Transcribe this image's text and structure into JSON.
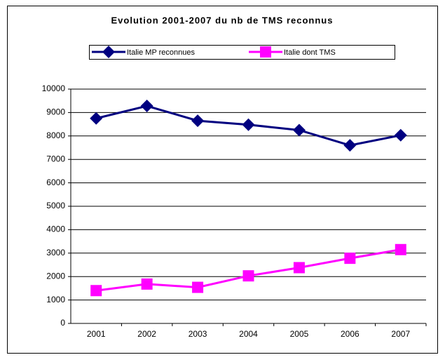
{
  "chart_data": {
    "type": "line",
    "title": "Evolution 2001-2007 du nb de TMS reconnus",
    "categories": [
      "2001",
      "2002",
      "2003",
      "2004",
      "2005",
      "2006",
      "2007"
    ],
    "series": [
      {
        "name": "Italie MP reconnues",
        "color": "#000080",
        "marker": "diamond",
        "values": [
          8750,
          9280,
          8650,
          8480,
          8250,
          7600,
          8030
        ]
      },
      {
        "name": "Italie dont TMS",
        "color": "#ff00ff",
        "marker": "square",
        "values": [
          1400,
          1680,
          1540,
          2030,
          2380,
          2780,
          3150
        ]
      }
    ],
    "ylim": [
      0,
      10000
    ],
    "yticks": [
      0,
      1000,
      2000,
      3000,
      4000,
      5000,
      6000,
      7000,
      8000,
      9000,
      10000
    ],
    "grid": true,
    "legend": "top"
  }
}
